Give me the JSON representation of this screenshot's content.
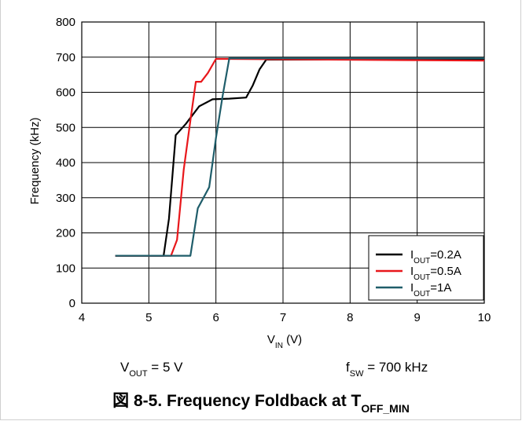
{
  "chart_data": {
    "type": "line",
    "xlabel": {
      "main": "V",
      "sub": "IN",
      "unit": " (V)"
    },
    "ylabel": "Frequency (kHz)",
    "xlim": [
      4,
      10
    ],
    "ylim": [
      0,
      800
    ],
    "xticks": [
      4,
      5,
      6,
      7,
      8,
      9,
      10
    ],
    "yticks": [
      0,
      100,
      200,
      300,
      400,
      500,
      600,
      700,
      800
    ],
    "grid": true,
    "legend_position": "bottom-right",
    "series": [
      {
        "name": {
          "main": "I",
          "sub": "OUT",
          "rest": "=0.2A"
        },
        "color": "#000000",
        "points": [
          [
            4.5,
            135
          ],
          [
            5.22,
            135
          ],
          [
            5.3,
            240
          ],
          [
            5.4,
            478
          ],
          [
            5.55,
            510
          ],
          [
            5.75,
            560
          ],
          [
            5.95,
            580
          ],
          [
            6.2,
            582
          ],
          [
            6.45,
            585
          ],
          [
            6.55,
            620
          ],
          [
            6.65,
            665
          ],
          [
            6.75,
            693
          ],
          [
            10,
            693
          ]
        ]
      },
      {
        "name": {
          "main": "I",
          "sub": "OUT",
          "rest": "=0.5A"
        },
        "color": "#e8171b",
        "points": [
          [
            4.5,
            135
          ],
          [
            5.33,
            135
          ],
          [
            5.42,
            180
          ],
          [
            5.52,
            380
          ],
          [
            5.62,
            520
          ],
          [
            5.7,
            630
          ],
          [
            5.78,
            630
          ],
          [
            5.88,
            655
          ],
          [
            6.0,
            695
          ],
          [
            6.2,
            695
          ],
          [
            10,
            690
          ]
        ]
      },
      {
        "name": {
          "main": "I",
          "sub": "OUT",
          "rest": "=1A"
        },
        "color": "#1f5d6a",
        "points": [
          [
            4.5,
            135
          ],
          [
            5.62,
            135
          ],
          [
            5.73,
            270
          ],
          [
            5.9,
            330
          ],
          [
            6.0,
            470
          ],
          [
            6.1,
            590
          ],
          [
            6.2,
            697
          ],
          [
            10,
            697
          ]
        ]
      }
    ]
  },
  "notes": {
    "vout": {
      "main": "V",
      "sub": "OUT",
      "rest": " = 5 V"
    },
    "fsw": {
      "main": "f",
      "sub": "SW",
      "rest": " = 700 kHz"
    }
  },
  "caption": {
    "main": "図 8-5. Frequency Foldback at T",
    "sub": "OFF_MIN"
  }
}
